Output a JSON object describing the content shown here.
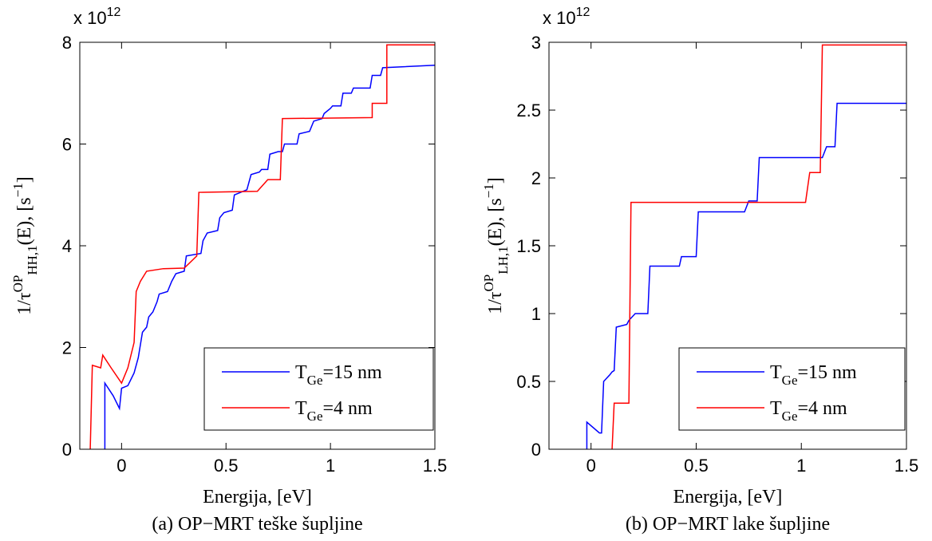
{
  "chart_data": [
    {
      "type": "line",
      "multiplier": {
        "base": "x 10",
        "exponent": "12"
      },
      "ylabel": [
        {
          "text": "1/τ"
        },
        {
          "text": "OP",
          "pos": "sup"
        },
        {
          "text": "HH,1",
          "pos": "sub"
        },
        {
          "text": "(E), [s"
        },
        {
          "text": "−1",
          "pos": "sup"
        },
        {
          "text": "]"
        }
      ],
      "xlabel": "Energija, [eV]",
      "caption": "(a) OP−MRT teške šupljine",
      "xlim": [
        -0.2,
        1.5
      ],
      "xticks": [
        0,
        0.5,
        1,
        1.5
      ],
      "ylim": [
        0,
        8
      ],
      "yticks": [
        0,
        2,
        4,
        6,
        8
      ],
      "legend": "lower right",
      "series": [
        {
          "name": [
            "T",
            "Ge",
            "=15 nm"
          ],
          "color": "#0000ff",
          "x": [
            -0.08,
            -0.08,
            -0.04,
            -0.01,
            0,
            0.03,
            0.06,
            0.08,
            0.1,
            0.12,
            0.13,
            0.15,
            0.17,
            0.18,
            0.22,
            0.24,
            0.26,
            0.3,
            0.31,
            0.38,
            0.39,
            0.41,
            0.46,
            0.47,
            0.49,
            0.53,
            0.54,
            0.57,
            0.6,
            0.62,
            0.66,
            0.67,
            0.7,
            0.71,
            0.75,
            0.77,
            0.78,
            0.84,
            0.85,
            0.9,
            0.92,
            0.96,
            0.97,
            1.0,
            1.01,
            1.05,
            1.06,
            1.1,
            1.11,
            1.19,
            1.2,
            1.24,
            1.25,
            1.5
          ],
          "values": [
            0,
            1.3,
            1.05,
            0.8,
            1.2,
            1.25,
            1.5,
            1.8,
            2.3,
            2.4,
            2.6,
            2.7,
            2.9,
            3.05,
            3.1,
            3.3,
            3.45,
            3.5,
            3.8,
            3.85,
            4.1,
            4.25,
            4.3,
            4.55,
            4.65,
            4.7,
            5.0,
            5.05,
            5.1,
            5.4,
            5.45,
            5.5,
            5.5,
            5.8,
            5.85,
            5.85,
            6.0,
            6.0,
            6.2,
            6.25,
            6.45,
            6.5,
            6.6,
            6.7,
            6.75,
            6.75,
            7.0,
            7.0,
            7.1,
            7.1,
            7.35,
            7.35,
            7.5,
            7.55
          ]
        },
        {
          "name": [
            "T",
            "Ge",
            "=4 nm"
          ],
          "color": "#ff0000",
          "x": [
            -0.15,
            -0.14,
            -0.1,
            -0.09,
            -0.05,
            0,
            0.03,
            0.06,
            0.07,
            0.09,
            0.12,
            0.2,
            0.3,
            0.36,
            0.37,
            0.65,
            0.7,
            0.76,
            0.77,
            1.2,
            1.2,
            1.27,
            1.27,
            1.5
          ],
          "values": [
            0,
            1.65,
            1.6,
            1.85,
            1.6,
            1.3,
            1.6,
            2.1,
            3.1,
            3.3,
            3.5,
            3.55,
            3.56,
            3.8,
            5.05,
            5.07,
            5.3,
            5.3,
            6.5,
            6.52,
            6.8,
            6.8,
            7.95,
            7.95
          ]
        }
      ]
    },
    {
      "type": "line",
      "multiplier": {
        "base": "x 10",
        "exponent": "12"
      },
      "ylabel": [
        {
          "text": "1/τ"
        },
        {
          "text": "OP",
          "pos": "sup"
        },
        {
          "text": "LH,1",
          "pos": "sub"
        },
        {
          "text": "(E), [s"
        },
        {
          "text": "−1",
          "pos": "sup"
        },
        {
          "text": "]"
        }
      ],
      "xlabel": "Energija, [eV]",
      "caption": "(b) OP−MRT lake šupljine",
      "xlim": [
        -0.2,
        1.5
      ],
      "xticks": [
        0,
        0.5,
        1,
        1.5
      ],
      "ylim": [
        0,
        3
      ],
      "yticks": [
        0,
        0.5,
        1,
        1.5,
        2,
        2.5,
        3
      ],
      "legend": "lower right",
      "series": [
        {
          "name": [
            "T",
            "Ge",
            "=15 nm"
          ],
          "color": "#0000ff",
          "x": [
            -0.02,
            -0.02,
            0.04,
            0.05,
            0.06,
            0.09,
            0.1,
            0.11,
            0.12,
            0.17,
            0.18,
            0.21,
            0.27,
            0.28,
            0.42,
            0.43,
            0.5,
            0.51,
            0.73,
            0.75,
            0.79,
            0.8,
            1.1,
            1.12,
            1.16,
            1.17,
            1.5
          ],
          "values": [
            0,
            0.2,
            0.12,
            0.12,
            0.5,
            0.55,
            0.57,
            0.58,
            0.9,
            0.92,
            0.95,
            1.0,
            1.0,
            1.35,
            1.35,
            1.42,
            1.42,
            1.75,
            1.75,
            1.83,
            1.83,
            2.15,
            2.15,
            2.23,
            2.23,
            2.55,
            2.55
          ]
        },
        {
          "name": [
            "T",
            "Ge",
            "=4 nm"
          ],
          "color": "#ff0000",
          "x": [
            0.1,
            0.11,
            0.18,
            0.19,
            1.02,
            1.04,
            1.09,
            1.1,
            1.5
          ],
          "values": [
            0,
            0.34,
            0.34,
            1.82,
            1.82,
            2.04,
            2.04,
            2.98,
            2.98
          ]
        }
      ]
    }
  ]
}
